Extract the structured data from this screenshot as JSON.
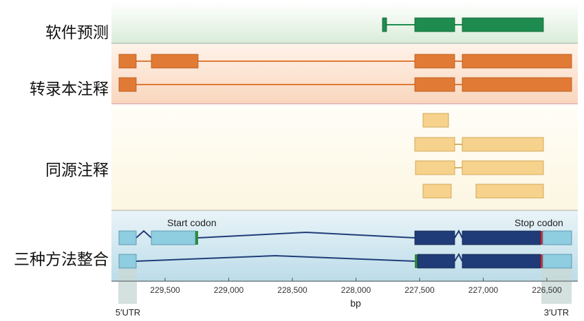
{
  "row_labels": {
    "prediction": "软件预测",
    "transcript": "转录本注释",
    "homology": "同源注释",
    "combined": "三种方法整合"
  },
  "annotations": {
    "start_codon": "Start codon",
    "stop_codon": "Stop codon",
    "utr5": "5′UTR",
    "utr3": "3′UTR"
  },
  "axis": {
    "unit_label": "bp",
    "ticks": [
      "229,500",
      "229,000",
      "228,500",
      "228,000",
      "227,500",
      "227,000",
      "226,500"
    ]
  },
  "colors": {
    "prediction_bg": "#e4f1e3",
    "prediction_exon": "#1e8c4e",
    "transcript_bg": "#fbe2cf",
    "transcript_exon": "#e07a35",
    "homology_bg": "#fdf9ea",
    "homology_exon": "#f6d28d",
    "combined_bg": "#d2e7f0",
    "cds": "#1f3c78",
    "utr": "#8fcde0",
    "start_marker": "#2e8b3e",
    "stop_marker": "#d8232a"
  }
}
